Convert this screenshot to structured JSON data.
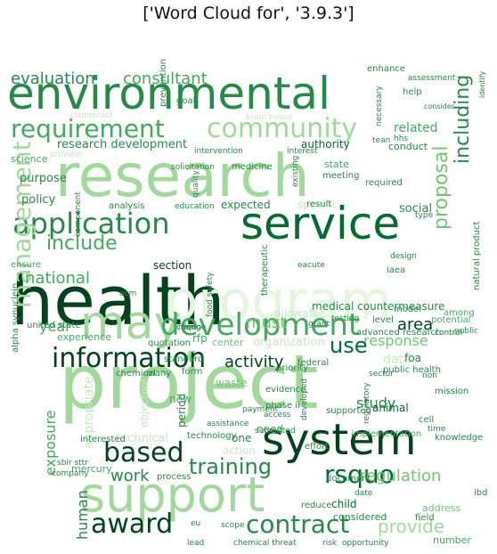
{
  "figure": {
    "title": "['Word Cloud for', '3.9.3']"
  },
  "palette": {
    "dark": "#00441b",
    "dark2": "#006d2c",
    "mid": "#238b45",
    "mid2": "#41ab5d",
    "light": "#74c476",
    "light2": "#a1d99b",
    "pale": "#c7e9c0",
    "paler": "#e5f5e0"
  },
  "words": [
    {
      "text": "environmental",
      "color": "mid"
    },
    {
      "text": "research",
      "color": "light2"
    },
    {
      "text": "project",
      "color": "light2"
    },
    {
      "text": "health",
      "color": "dark"
    },
    {
      "text": "program",
      "color": "paler"
    },
    {
      "text": "service",
      "color": "dark2"
    },
    {
      "text": "support",
      "color": "light2"
    },
    {
      "text": "system",
      "color": "dark"
    },
    {
      "text": "may",
      "color": "light2"
    },
    {
      "text": "development",
      "color": "mid2"
    },
    {
      "text": "information",
      "color": "dark"
    },
    {
      "text": "application",
      "color": "mid"
    },
    {
      "text": "community",
      "color": "light2"
    },
    {
      "text": "requirement",
      "color": "mid2"
    },
    {
      "text": "management",
      "color": "light2"
    },
    {
      "text": "based",
      "color": "dark"
    },
    {
      "text": "award",
      "color": "dark"
    },
    {
      "text": "contract",
      "color": "mid"
    },
    {
      "text": "rsquo",
      "color": "dark2"
    },
    {
      "text": "training",
      "color": "mid"
    },
    {
      "text": "include",
      "color": "mid2"
    },
    {
      "text": "proposal",
      "color": "light"
    },
    {
      "text": "including",
      "color": "mid"
    },
    {
      "text": "evaluation",
      "color": "mid"
    },
    {
      "text": "consultant",
      "color": "mid2"
    },
    {
      "text": "national",
      "color": "mid2"
    },
    {
      "text": "activity",
      "color": "dark"
    },
    {
      "text": "response",
      "color": "light"
    },
    {
      "text": "use",
      "color": "dark2"
    },
    {
      "text": "provide",
      "color": "light2"
    },
    {
      "text": "regulation",
      "color": "light"
    },
    {
      "text": "work",
      "color": "mid"
    },
    {
      "text": "study",
      "color": "mid"
    },
    {
      "text": "area",
      "color": "dark"
    },
    {
      "text": "must",
      "color": "light"
    },
    {
      "text": "year",
      "color": "mid2"
    },
    {
      "text": "human",
      "color": "mid"
    },
    {
      "text": "exposure",
      "color": "mid2"
    },
    {
      "text": "appropriate",
      "color": "pale"
    },
    {
      "text": "organization",
      "color": "pale"
    },
    {
      "text": "technical",
      "color": "pale"
    },
    {
      "text": "data",
      "color": "pale"
    },
    {
      "text": "related",
      "color": "mid2"
    },
    {
      "text": "research development",
      "color": "mid"
    },
    {
      "text": "medical countermeasure",
      "color": "mid"
    },
    {
      "text": "advanced research",
      "color": "mid"
    },
    {
      "text": "section",
      "color": "dark"
    },
    {
      "text": "expected",
      "color": "mid"
    },
    {
      "text": "specific",
      "color": "pale"
    },
    {
      "text": "social",
      "color": "mid"
    },
    {
      "text": "policy",
      "color": "mid"
    },
    {
      "text": "purpose",
      "color": "mid"
    },
    {
      "text": "science",
      "color": "mid2"
    },
    {
      "text": "experience",
      "color": "mid2"
    },
    {
      "text": "rfp",
      "color": "mid2"
    },
    {
      "text": "foa",
      "color": "mid"
    },
    {
      "text": "center",
      "color": "light"
    },
    {
      "text": "new",
      "color": "mid2"
    },
    {
      "text": "period",
      "color": "mid"
    },
    {
      "text": "objective",
      "color": "pale"
    },
    {
      "text": "one",
      "color": "mid"
    },
    {
      "text": "need",
      "color": "mid2"
    },
    {
      "text": "action",
      "color": "pale"
    },
    {
      "text": "animal",
      "color": "dark2"
    },
    {
      "text": "child",
      "color": "dark2"
    },
    {
      "text": "considered",
      "color": "mid"
    },
    {
      "text": "interested",
      "color": "mid"
    },
    {
      "text": "mercury",
      "color": "mid2"
    },
    {
      "text": "number",
      "color": "mid2"
    },
    {
      "text": "address",
      "color": "light"
    },
    {
      "text": "natural product",
      "color": "mid"
    },
    {
      "text": "authority",
      "color": "dark2"
    },
    {
      "text": "conduct",
      "color": "mid"
    },
    {
      "text": "state",
      "color": "mid2"
    },
    {
      "text": "required",
      "color": "mid"
    },
    {
      "text": "meeting",
      "color": "mid"
    },
    {
      "text": "result",
      "color": "mid"
    },
    {
      "text": "iaea",
      "color": "mid"
    },
    {
      "text": "model",
      "color": "mid"
    },
    {
      "text": "level",
      "color": "mid"
    },
    {
      "text": "federal",
      "color": "mid"
    },
    {
      "text": "priority",
      "color": "mid"
    },
    {
      "text": "chemical threat",
      "color": "mid"
    },
    {
      "text": "opportunity",
      "color": "mid"
    },
    {
      "text": "risk",
      "color": "mid"
    },
    {
      "text": "knowledge",
      "color": "mid"
    },
    {
      "text": "mission",
      "color": "mid"
    },
    {
      "text": "implementation",
      "color": "mid2"
    },
    {
      "text": "supported",
      "color": "mid"
    },
    {
      "text": "document",
      "color": "mid"
    },
    {
      "text": "reduce",
      "color": "mid"
    },
    {
      "text": "field",
      "color": "mid"
    },
    {
      "text": "ibd",
      "color": "mid"
    },
    {
      "text": "date",
      "color": "mid"
    },
    {
      "text": "alpha synuclein",
      "color": "mid"
    },
    {
      "text": "ensure",
      "color": "mid2"
    },
    {
      "text": "united state",
      "color": "mid"
    },
    {
      "text": "quotation",
      "color": "mid"
    },
    {
      "text": "evidence",
      "color": "mid"
    },
    {
      "text": "waste",
      "color": "light"
    },
    {
      "text": "many",
      "color": "mid"
    },
    {
      "text": "form",
      "color": "mid"
    },
    {
      "text": "standard",
      "color": "mid"
    },
    {
      "text": "chemical",
      "color": "mid"
    },
    {
      "text": "technology",
      "color": "mid"
    },
    {
      "text": "process",
      "color": "mid"
    },
    {
      "text": "company",
      "color": "mid"
    },
    {
      "text": "sbir sttr",
      "color": "mid"
    },
    {
      "text": "eu",
      "color": "mid"
    },
    {
      "text": "public health",
      "color": "mid"
    },
    {
      "text": "potential",
      "color": "mid2"
    },
    {
      "text": "among",
      "color": "mid2"
    },
    {
      "text": "public",
      "color": "mid"
    },
    {
      "text": "review",
      "color": "pale"
    },
    {
      "text": "testing",
      "color": "mid"
    },
    {
      "text": "control",
      "color": "mid"
    },
    {
      "text": "rdquo",
      "color": "mid"
    },
    {
      "text": "change",
      "color": "mid"
    },
    {
      "text": "enhance",
      "color": "mid"
    },
    {
      "text": "assessment",
      "color": "mid"
    },
    {
      "text": "help",
      "color": "mid"
    },
    {
      "text": "consider",
      "color": "mid"
    },
    {
      "text": "identify",
      "color": "mid"
    },
    {
      "text": "prevention",
      "color": "mid"
    },
    {
      "text": "goal",
      "color": "mid"
    },
    {
      "text": "medicine",
      "color": "mid"
    },
    {
      "text": "analysis",
      "color": "mid"
    },
    {
      "text": "education",
      "color": "mid"
    },
    {
      "text": "intervention",
      "color": "mid"
    },
    {
      "text": "interest",
      "color": "mid"
    },
    {
      "text": "existing",
      "color": "mid"
    },
    {
      "text": "type",
      "color": "mid"
    },
    {
      "text": "hhs",
      "color": "mid"
    },
    {
      "text": "tean",
      "color": "mid"
    },
    {
      "text": "eacute",
      "color": "mid"
    },
    {
      "text": "therapeutic",
      "color": "mid"
    },
    {
      "text": "design",
      "color": "mid"
    },
    {
      "text": "quality",
      "color": "mid"
    },
    {
      "text": "component",
      "color": "mid"
    },
    {
      "text": "food safety",
      "color": "mid"
    },
    {
      "text": "phase ii",
      "color": "mid"
    },
    {
      "text": "access",
      "color": "mid"
    },
    {
      "text": "assistance",
      "color": "mid"
    },
    {
      "text": "payment",
      "color": "mid"
    },
    {
      "text": "developed",
      "color": "mid"
    },
    {
      "text": "regulatory",
      "color": "mid"
    },
    {
      "text": "submitted",
      "color": "mid"
    },
    {
      "text": "cell",
      "color": "mid"
    },
    {
      "text": "effort",
      "color": "mid"
    },
    {
      "text": "solicitation",
      "color": "mid"
    },
    {
      "text": "brain tissue",
      "color": "pale"
    },
    {
      "text": "counteract",
      "color": "pale"
    },
    {
      "text": "sector",
      "color": "mid"
    },
    {
      "text": "grant",
      "color": "mid"
    },
    {
      "text": "ocm",
      "color": "mid"
    },
    {
      "text": "necessary",
      "color": "mid"
    },
    {
      "text": "scope",
      "color": "mid"
    },
    {
      "text": "lead",
      "color": "mid"
    },
    {
      "text": "time",
      "color": "mid"
    },
    {
      "text": "non",
      "color": "mid"
    },
    {
      "text": "allowable",
      "color": "pale"
    },
    {
      "text": "provider",
      "color": "pale"
    }
  ]
}
